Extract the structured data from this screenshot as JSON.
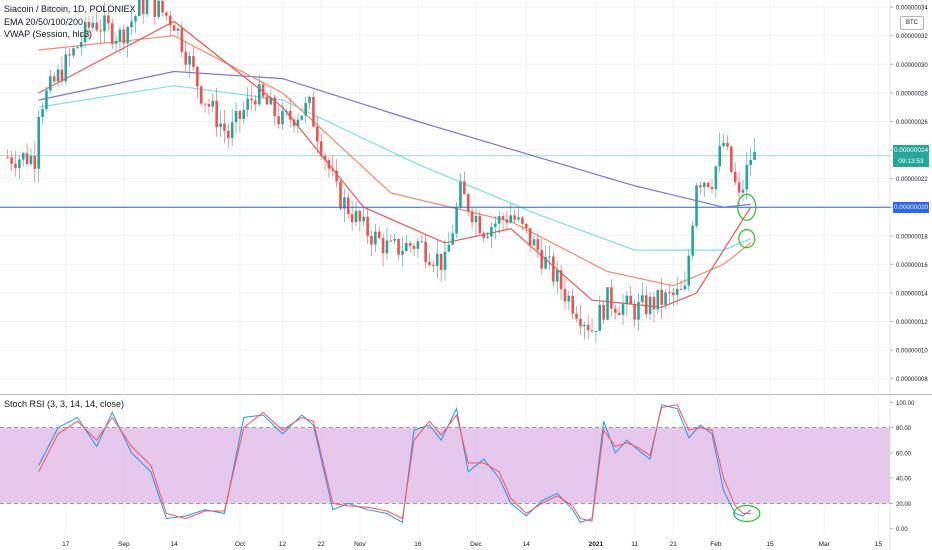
{
  "legend": {
    "title": "Siacoin / Bitcoin, 1D, POLONIEX",
    "ema": "EMA 20/50/100/200",
    "vwap": "VWAP (Session, hlc3)",
    "rsi": "Stoch RSI (3, 3, 14, 14, close)",
    "currency_badge": "BTC"
  },
  "price_tags": {
    "current": "0.00000024",
    "countdown": "09:13:53",
    "level": "0.00000020"
  },
  "colors": {
    "up": "#26a69a",
    "down": "#ef5350",
    "ema20": "#f0544f",
    "ema50": "#f5886a",
    "ema100": "#7ee0e6",
    "ema200": "#7b74d8",
    "vwap": "#5b9bd5",
    "hline": "#2962ff",
    "rsi_k": "#2196f3",
    "rsi_d": "#ff5252",
    "band": "#e1bee7",
    "annotation": "#22c322"
  },
  "chart_data": [
    {
      "type": "candlestick",
      "title": "Siacoin / Bitcoin, 1D, POLONIEX",
      "y_unit": "BTC",
      "ylim": [
        7e-08,
        3.45e-07
      ],
      "y_ticks": [
        "0.00000034",
        "0.00000032",
        "0.00000030",
        "0.00000028",
        "0.00000026",
        "0.00000024",
        "0.00000022",
        "0.00000020",
        "0.00000018",
        "0.00000016",
        "0.00000014",
        "0.00000012",
        "0.00000010",
        "0.00000008"
      ],
      "x_ticks": [
        "17",
        "Sep",
        "14",
        "Oct",
        "12",
        "22",
        "Nov",
        "16",
        "Dec",
        "14",
        "2021",
        "11",
        "21",
        "Feb",
        "15",
        "Mar",
        "15"
      ],
      "close_path": [
        [
          "Aug 10",
          2.7e-07
        ],
        [
          "Aug 17",
          3e-07
        ],
        [
          "Aug 24",
          3.3e-07
        ],
        [
          "Aug 31",
          3.2e-07
        ],
        [
          "Sep 7",
          3.45e-07
        ],
        [
          "Sep 14",
          3.3e-07
        ],
        [
          "Sep 21",
          2.8e-07
        ],
        [
          "Sep 28",
          2.5e-07
        ],
        [
          "Oct 5",
          2.8e-07
        ],
        [
          "Oct 12",
          2.6e-07
        ],
        [
          "Oct 19",
          2.7e-07
        ],
        [
          "Oct 26",
          2.1e-07
        ],
        [
          "Nov 2",
          1.85e-07
        ],
        [
          "Nov 9",
          1.7e-07
        ],
        [
          "Nov 16",
          1.75e-07
        ],
        [
          "Nov 23",
          1.6e-07
        ],
        [
          "Nov 27",
          2.1e-07
        ],
        [
          "Dec 3",
          1.85e-07
        ],
        [
          "Dec 10",
          1.95e-07
        ],
        [
          "Dec 17",
          1.7e-07
        ],
        [
          "Dec 24",
          1.4e-07
        ],
        [
          "Dec 31",
          1.15e-07
        ],
        [
          "Jan 4",
          1.35e-07
        ],
        [
          "Jan 11",
          1.28e-07
        ],
        [
          "Jan 18",
          1.35e-07
        ],
        [
          "Jan 24",
          1.4e-07
        ],
        [
          "Jan 27",
          2.2e-07
        ],
        [
          "Jan 31",
          2.2e-07
        ],
        [
          "Feb 3",
          2.45e-07
        ],
        [
          "Feb 7",
          2.05e-07
        ],
        [
          "Feb 10",
          2.35e-07
        ]
      ],
      "ema20_points": [
        [
          "Aug 10",
          2.8e-07
        ],
        [
          "Sep 14",
          3.3e-07
        ],
        [
          "Oct 12",
          2.7e-07
        ],
        [
          "Nov 2",
          2e-07
        ],
        [
          "Nov 23",
          1.75e-07
        ],
        [
          "Dec 10",
          1.85e-07
        ],
        [
          "Dec 31",
          1.35e-07
        ],
        [
          "Jan 18",
          1.3e-07
        ],
        [
          "Jan 27",
          1.4e-07
        ],
        [
          "Feb 3",
          1.7e-07
        ],
        [
          "Feb 10",
          2e-07
        ]
      ],
      "ema50_points": [
        [
          "Aug 10",
          3.1e-07
        ],
        [
          "Sep 14",
          3.2e-07
        ],
        [
          "Oct 12",
          2.8e-07
        ],
        [
          "Nov 9",
          2.1e-07
        ],
        [
          "Dec 10",
          1.9e-07
        ],
        [
          "Jan 4",
          1.55e-07
        ],
        [
          "Jan 21",
          1.45e-07
        ],
        [
          "Feb 3",
          1.6e-07
        ],
        [
          "Feb 10",
          1.75e-07
        ]
      ],
      "ema100_points": [
        [
          "Aug 10",
          2.7e-07
        ],
        [
          "Sep 14",
          2.85e-07
        ],
        [
          "Oct 12",
          2.75e-07
        ],
        [
          "Nov 16",
          2.3e-07
        ],
        [
          "Dec 17",
          1.95e-07
        ],
        [
          "Jan 11",
          1.7e-07
        ],
        [
          "Feb 3",
          1.7e-07
        ],
        [
          "Feb 10",
          1.78e-07
        ]
      ],
      "ema200_points": [
        [
          "Aug 10",
          2.75e-07
        ],
        [
          "Sep 14",
          2.95e-07
        ],
        [
          "Oct 12",
          2.9e-07
        ],
        [
          "Nov 16",
          2.6e-07
        ],
        [
          "Dec 17",
          2.35e-07
        ],
        [
          "Jan 11",
          2.15e-07
        ],
        [
          "Feb 3",
          2e-07
        ],
        [
          "Feb 10",
          2.02e-07
        ]
      ],
      "hline": 2e-07
    },
    {
      "type": "line",
      "title": "Stoch RSI (3, 3, 14, 14, close)",
      "ylim": [
        -5,
        105
      ],
      "y_ticks": [
        100,
        80,
        60,
        40,
        20,
        0
      ],
      "bands": [
        20,
        80
      ],
      "series": [
        {
          "name": "K",
          "points": [
            [
              "Aug 10",
              50
            ],
            [
              "Aug 15",
              80
            ],
            [
              "Aug 20",
              88
            ],
            [
              "Aug 25",
              65
            ],
            [
              "Aug 29",
              92
            ],
            [
              "Sep 3",
              60
            ],
            [
              "Sep 8",
              45
            ],
            [
              "Sep 12",
              8
            ],
            [
              "Sep 17",
              10
            ],
            [
              "Sep 22",
              15
            ],
            [
              "Sep 27",
              12
            ],
            [
              "Oct 2",
              88
            ],
            [
              "Oct 7",
              90
            ],
            [
              "Oct 12",
              75
            ],
            [
              "Oct 17",
              90
            ],
            [
              "Oct 20",
              82
            ],
            [
              "Oct 25",
              15
            ],
            [
              "Oct 29",
              20
            ],
            [
              "Nov 3",
              15
            ],
            [
              "Nov 8",
              12
            ],
            [
              "Nov 12",
              5
            ],
            [
              "Nov 15",
              78
            ],
            [
              "Nov 19",
              82
            ],
            [
              "Nov 22",
              70
            ],
            [
              "Nov 26",
              95
            ],
            [
              "Nov 29",
              45
            ],
            [
              "Dec 3",
              55
            ],
            [
              "Dec 7",
              40
            ],
            [
              "Dec 10",
              20
            ],
            [
              "Dec 14",
              10
            ],
            [
              "Dec 18",
              22
            ],
            [
              "Dec 22",
              28
            ],
            [
              "Dec 26",
              15
            ],
            [
              "Dec 28",
              5
            ],
            [
              "Dec 31",
              8
            ],
            [
              "Jan 3",
              85
            ],
            [
              "Jan 6",
              60
            ],
            [
              "Jan 9",
              70
            ],
            [
              "Jan 12",
              62
            ],
            [
              "Jan 15",
              55
            ],
            [
              "Jan 18",
              98
            ],
            [
              "Jan 22",
              95
            ],
            [
              "Jan 25",
              72
            ],
            [
              "Jan 28",
              82
            ],
            [
              "Jan 31",
              75
            ],
            [
              "Feb 3",
              30
            ],
            [
              "Feb 6",
              12
            ],
            [
              "Feb 8",
              10
            ],
            [
              "Feb 10",
              15
            ]
          ]
        },
        {
          "name": "D",
          "points": [
            [
              "Aug 10",
              45
            ],
            [
              "Aug 15",
              75
            ],
            [
              "Aug 20",
              85
            ],
            [
              "Aug 25",
              70
            ],
            [
              "Aug 29",
              88
            ],
            [
              "Sep 3",
              65
            ],
            [
              "Sep 8",
              50
            ],
            [
              "Sep 12",
              12
            ],
            [
              "Sep 17",
              8
            ],
            [
              "Sep 22",
              14
            ],
            [
              "Sep 27",
              14
            ],
            [
              "Oct 2",
              80
            ],
            [
              "Oct 7",
              92
            ],
            [
              "Oct 12",
              78
            ],
            [
              "Oct 17",
              88
            ],
            [
              "Oct 20",
              85
            ],
            [
              "Oct 25",
              20
            ],
            [
              "Oct 29",
              18
            ],
            [
              "Nov 3",
              17
            ],
            [
              "Nov 8",
              14
            ],
            [
              "Nov 12",
              8
            ],
            [
              "Nov 15",
              70
            ],
            [
              "Nov 19",
              85
            ],
            [
              "Nov 22",
              74
            ],
            [
              "Nov 26",
              90
            ],
            [
              "Nov 29",
              52
            ],
            [
              "Dec 3",
              52
            ],
            [
              "Dec 7",
              45
            ],
            [
              "Dec 10",
              24
            ],
            [
              "Dec 14",
              12
            ],
            [
              "Dec 18",
              20
            ],
            [
              "Dec 22",
              26
            ],
            [
              "Dec 26",
              18
            ],
            [
              "Dec 28",
              8
            ],
            [
              "Dec 31",
              6
            ],
            [
              "Jan 3",
              78
            ],
            [
              "Jan 6",
              65
            ],
            [
              "Jan 9",
              68
            ],
            [
              "Jan 12",
              64
            ],
            [
              "Jan 15",
              58
            ],
            [
              "Jan 18",
              96
            ],
            [
              "Jan 22",
              98
            ],
            [
              "Jan 25",
              78
            ],
            [
              "Jan 28",
              80
            ],
            [
              "Jan 31",
              78
            ],
            [
              "Feb 3",
              40
            ],
            [
              "Feb 6",
              18
            ],
            [
              "Feb 8",
              12
            ],
            [
              "Feb 10",
              12
            ]
          ]
        }
      ]
    }
  ]
}
